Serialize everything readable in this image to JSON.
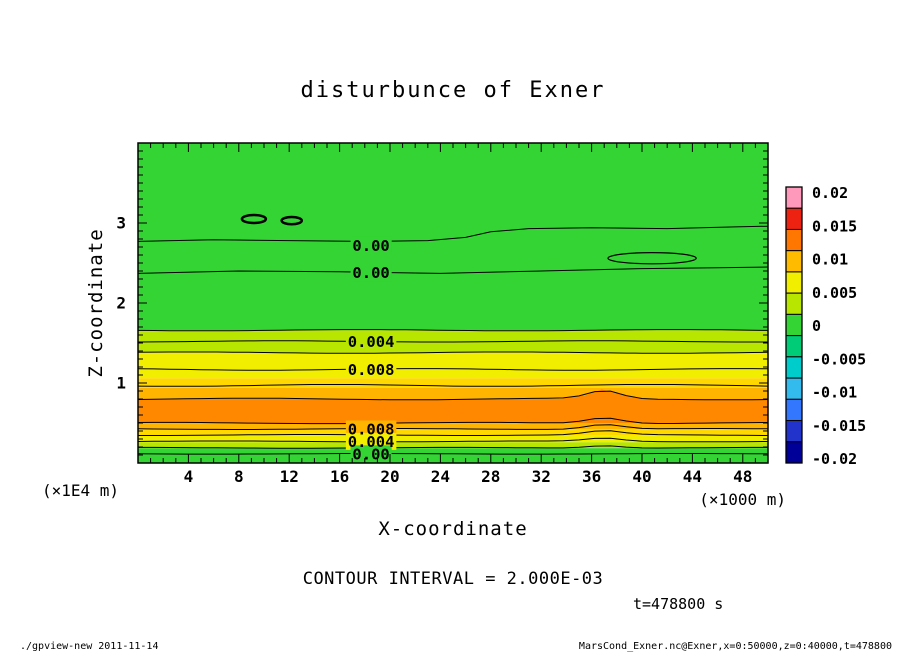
{
  "footer": {
    "left": "./gpview-new  2011-11-14",
    "right": "MarsCond_Exner.nc@Exner,x=0:50000,z=0:40000,t=478800"
  },
  "chart_data": {
    "type": "heatmap",
    "title": "disturbunce of Exner",
    "xlabel": "X-coordinate",
    "x_unit": "(×1000 m)",
    "xlim": [
      0,
      50
    ],
    "x_major_ticks": [
      4,
      8,
      12,
      16,
      20,
      24,
      28,
      32,
      36,
      40,
      44,
      48
    ],
    "x_minor_step": 1,
    "ylabel": "Z-coordinate",
    "y_unit": "(×1E4 m)",
    "ylim": [
      0,
      4
    ],
    "y_major_ticks": [
      1,
      2,
      3
    ],
    "y_minor_step": 0.1,
    "contour_interval_label": "CONTOUR INTERVAL = 2.000E-03",
    "time_label": "t=478800 s",
    "bands": [
      {
        "z_from": 4.0,
        "z_to": 1.66,
        "color": "#33d433",
        "value": "≈0 to 0.002"
      },
      {
        "z_from": 1.66,
        "z_to": 1.38,
        "color": "#b8e600",
        "value": "0.002–0.004"
      },
      {
        "z_from": 1.38,
        "z_to": 1.06,
        "color": "#f2ee00",
        "value": "0.004–0.007"
      },
      {
        "z_from": 1.06,
        "z_to": 0.94,
        "color": "#ffd800",
        "value": "0.007–0.009"
      },
      {
        "z_from": 0.94,
        "z_to": 0.8,
        "color": "#ffb400",
        "value": "0.009–0.012"
      },
      {
        "z_from": 0.8,
        "z_to": 0.5,
        "color": "#ff8800",
        "value": ">0.012"
      },
      {
        "z_from": 0.5,
        "z_to": 0.425,
        "color": "#ffb400",
        "value": "0.009–0.012"
      },
      {
        "z_from": 0.425,
        "z_to": 0.35,
        "color": "#ffd800",
        "value": "0.007–0.009"
      },
      {
        "z_from": 0.35,
        "z_to": 0.26,
        "color": "#f2ee00",
        "value": "0.004–0.007"
      },
      {
        "z_from": 0.26,
        "z_to": 0.185,
        "color": "#b8e600",
        "value": "0.002–0.004"
      },
      {
        "z_from": 0.185,
        "z_to": 0.0,
        "color": "#33d433",
        "value": "≈0 to 0.002"
      }
    ],
    "bumps": [
      {
        "color": "#ff8800",
        "pts": [
          [
            33.5,
            0.8
          ],
          [
            35.5,
            0.845
          ],
          [
            36.8,
            0.92
          ],
          [
            38.0,
            0.87
          ],
          [
            39.5,
            0.815
          ],
          [
            40.5,
            0.8
          ]
        ]
      }
    ],
    "contours": [
      {
        "level": 0.0,
        "pts": [
          [
            0,
            2.77
          ],
          [
            6,
            2.79
          ],
          [
            12,
            2.78
          ],
          [
            18,
            2.77
          ],
          [
            23,
            2.78
          ],
          [
            26,
            2.82
          ],
          [
            28,
            2.89
          ],
          [
            31,
            2.93
          ],
          [
            36,
            2.94
          ],
          [
            42,
            2.93
          ],
          [
            47,
            2.95
          ],
          [
            50,
            2.96
          ]
        ],
        "label": {
          "text": "0.00",
          "x": 18.5,
          "z": 2.72
        }
      },
      {
        "level": 0.0,
        "pts": [
          [
            0,
            2.37
          ],
          [
            8,
            2.4
          ],
          [
            16,
            2.39
          ],
          [
            24,
            2.37
          ],
          [
            32,
            2.4
          ],
          [
            40,
            2.43
          ],
          [
            46,
            2.44
          ],
          [
            50,
            2.45
          ]
        ],
        "label": {
          "text": "0.00",
          "x": 18.5,
          "z": 2.38
        }
      },
      {
        "level": 0.002,
        "z": 1.66,
        "amp": 0.008
      },
      {
        "level": 0.004,
        "z": 1.52,
        "amp": 0.008,
        "label": {
          "text": "0.004",
          "x": 18.5,
          "z": 1.52
        }
      },
      {
        "level": 0.006,
        "z": 1.38,
        "amp": 0.008
      },
      {
        "level": 0.008,
        "z": 1.17,
        "amp": 0.01,
        "label": {
          "text": "0.008",
          "x": 18.5,
          "z": 1.17
        }
      },
      {
        "level": 0.01,
        "z": 0.97,
        "amp": 0.012
      },
      {
        "level": 0.012,
        "z": 0.8,
        "amp": 0.01,
        "bump": {
          "x": 37,
          "w": 1.8,
          "h": 0.1
        }
      },
      {
        "level": 0.01,
        "z": 0.5,
        "amp": 0.008,
        "bump": {
          "x": 37,
          "w": 2.0,
          "h": 0.07
        }
      },
      {
        "level": 0.008,
        "z": 0.425,
        "amp": 0.006,
        "bump": {
          "x": 37,
          "w": 2.0,
          "h": 0.06
        },
        "label": {
          "text": "0.008",
          "x": 18.5,
          "z": 0.425
        }
      },
      {
        "level": 0.006,
        "z": 0.35,
        "amp": 0.006,
        "bump": {
          "x": 37,
          "w": 2.0,
          "h": 0.05
        }
      },
      {
        "level": 0.004,
        "z": 0.27,
        "amp": 0.005,
        "bump": {
          "x": 37,
          "w": 2.0,
          "h": 0.04
        },
        "label": {
          "text": "0.004",
          "x": 18.5,
          "z": 0.27
        }
      },
      {
        "level": 0.002,
        "z": 0.19,
        "amp": 0.005,
        "bump": {
          "x": 37,
          "w": 2.0,
          "h": 0.03
        }
      },
      {
        "level": 0.0,
        "z": 0.115,
        "amp": 0.004,
        "label": {
          "text": "0.00",
          "x": 18.5,
          "z": 0.115
        }
      }
    ],
    "closed_contours": [
      {
        "cx": 9.2,
        "cz": 3.05,
        "rx": 0.95,
        "rz": 0.05,
        "stroke_width": 2.5
      },
      {
        "cx": 12.2,
        "cz": 3.03,
        "rx": 0.8,
        "rz": 0.045,
        "stroke_width": 2.5
      },
      {
        "cx": 40.8,
        "cz": 2.56,
        "rx": 3.5,
        "rz": 0.07,
        "stroke_width": 1.2
      }
    ],
    "colorbar": {
      "labels": [
        "0.02",
        "0.015",
        "0.01",
        "0.005",
        "0",
        "-0.005",
        "-0.01",
        "-0.015",
        "-0.02"
      ],
      "colors": [
        "#ff99bb",
        "#ee2211",
        "#ff7700",
        "#ffbb00",
        "#f2ee00",
        "#b8e600",
        "#33d433",
        "#00cc77",
        "#00cccc",
        "#33bbee",
        "#3377ff",
        "#2233cc",
        "#000099"
      ]
    }
  }
}
